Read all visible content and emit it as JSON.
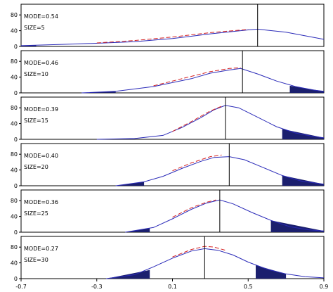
{
  "chart_data": [
    {
      "type": "line",
      "annotations": [
        "MODE=0.54",
        "SIZE=5"
      ],
      "mode_line_x": 0.55,
      "x_range": [
        -0.7,
        0.9
      ],
      "y_range": [
        0,
        100
      ],
      "yticks": [
        "0",
        "40",
        "80"
      ],
      "series": [
        {
          "color": "#2a2ab8",
          "dash": false,
          "x": [
            -0.7,
            -0.5,
            -0.3,
            -0.1,
            0.1,
            0.3,
            0.5,
            0.55,
            0.7,
            0.9
          ],
          "y": [
            2,
            5,
            8,
            12,
            20,
            32,
            42,
            44,
            36,
            18
          ]
        },
        {
          "color": "#d42020",
          "dash": true,
          "x": [
            -0.3,
            -0.1,
            0.1,
            0.3,
            0.5
          ],
          "y": [
            9,
            15,
            24,
            35,
            43
          ]
        }
      ],
      "tails": [
        {
          "x": [
            -0.7,
            -0.62
          ],
          "y": [
            2,
            3
          ]
        }
      ]
    },
    {
      "type": "line",
      "annotations": [
        "MODE=0.46",
        "SIZE=10"
      ],
      "mode_line_x": 0.47,
      "x_range": [
        -0.7,
        0.9
      ],
      "y_range": [
        0,
        100
      ],
      "yticks": [
        "0",
        "40",
        "80"
      ],
      "series": [
        {
          "color": "#2a2ab8",
          "dash": false,
          "x": [
            -0.38,
            -0.2,
            0.0,
            0.2,
            0.3,
            0.4,
            0.46,
            0.55,
            0.65,
            0.75,
            0.85,
            0.9
          ],
          "y": [
            0,
            4,
            16,
            36,
            50,
            58,
            62,
            48,
            30,
            16,
            7,
            4
          ]
        },
        {
          "color": "#d42020",
          "dash": true,
          "x": [
            0.0,
            0.1,
            0.2,
            0.3,
            0.4,
            0.46
          ],
          "y": [
            18,
            30,
            42,
            54,
            62,
            64
          ]
        }
      ],
      "tails": [
        {
          "x": [
            -0.38,
            -0.2
          ],
          "y": [
            0,
            4
          ]
        },
        {
          "x": [
            0.72,
            0.9
          ],
          "y": [
            18,
            4
          ]
        }
      ]
    },
    {
      "type": "line",
      "annotations": [
        "MODE=0.39",
        "SIZE=15"
      ],
      "mode_line_x": 0.38,
      "x_range": [
        -0.7,
        0.9
      ],
      "y_range": [
        0,
        100
      ],
      "yticks": [
        "0",
        "40",
        "80"
      ],
      "series": [
        {
          "color": "#2a2ab8",
          "dash": false,
          "x": [
            -0.3,
            -0.1,
            0.05,
            0.15,
            0.25,
            0.32,
            0.38,
            0.45,
            0.55,
            0.65,
            0.75,
            0.85,
            0.9
          ],
          "y": [
            0,
            2,
            10,
            30,
            55,
            75,
            86,
            80,
            56,
            32,
            16,
            7,
            4
          ]
        },
        {
          "color": "#d42020",
          "dash": true,
          "x": [
            0.1,
            0.2,
            0.3,
            0.36
          ],
          "y": [
            20,
            45,
            72,
            84
          ]
        }
      ],
      "tails": [
        {
          "x": [
            -0.3,
            -0.1
          ],
          "y": [
            0,
            2
          ]
        },
        {
          "x": [
            0.68,
            0.9
          ],
          "y": [
            26,
            4
          ]
        }
      ]
    },
    {
      "type": "line",
      "annotations": [
        "MODE=0.40",
        "SIZE=20"
      ],
      "mode_line_x": 0.4,
      "x_range": [
        -0.7,
        0.9
      ],
      "y_range": [
        0,
        100
      ],
      "yticks": [
        "0",
        "40",
        "80"
      ],
      "series": [
        {
          "color": "#2a2ab8",
          "dash": false,
          "x": [
            -0.2,
            -0.05,
            0.05,
            0.15,
            0.25,
            0.32,
            0.4,
            0.48,
            0.58,
            0.68,
            0.78,
            0.9
          ],
          "y": [
            0,
            10,
            24,
            44,
            62,
            72,
            74,
            66,
            46,
            26,
            12,
            4
          ]
        },
        {
          "color": "#d42020",
          "dash": true,
          "x": [
            0.1,
            0.2,
            0.3,
            0.36
          ],
          "y": [
            38,
            58,
            74,
            78
          ]
        }
      ],
      "tails": [
        {
          "x": [
            -0.2,
            -0.05
          ],
          "y": [
            0,
            10
          ]
        },
        {
          "x": [
            0.68,
            0.9
          ],
          "y": [
            26,
            4
          ]
        }
      ]
    },
    {
      "type": "line",
      "annotations": [
        "MODE=0.36",
        "SIZE=25"
      ],
      "mode_line_x": 0.35,
      "x_range": [
        -0.7,
        0.9
      ],
      "y_range": [
        0,
        100
      ],
      "yticks": [
        "0",
        "40",
        "80"
      ],
      "series": [
        {
          "color": "#2a2ab8",
          "dash": false,
          "x": [
            -0.15,
            0.0,
            0.1,
            0.2,
            0.28,
            0.35,
            0.42,
            0.52,
            0.62,
            0.72,
            0.82,
            0.9
          ],
          "y": [
            0,
            12,
            34,
            58,
            74,
            82,
            72,
            50,
            30,
            14,
            6,
            3
          ]
        },
        {
          "color": "#d42020",
          "dash": true,
          "x": [
            0.1,
            0.2,
            0.28,
            0.33
          ],
          "y": [
            38,
            62,
            76,
            82
          ]
        }
      ],
      "tails": [
        {
          "x": [
            -0.15,
            -0.02
          ],
          "y": [
            0,
            10
          ]
        },
        {
          "x": [
            0.62,
            0.9
          ],
          "y": [
            30,
            3
          ]
        }
      ]
    },
    {
      "type": "line",
      "annotations": [
        "MODE=0.27",
        "SIZE=30"
      ],
      "mode_line_x": 0.27,
      "x_range": [
        -0.7,
        0.9
      ],
      "y_range": [
        0,
        100
      ],
      "yticks": [
        "0",
        "40",
        "80"
      ],
      "xticks": [
        "-0.7",
        "-0.3",
        "0.1",
        "0.5",
        "0.9"
      ],
      "series": [
        {
          "color": "#2a2ab8",
          "dash": false,
          "x": [
            -0.25,
            -0.1,
            0.0,
            0.1,
            0.2,
            0.27,
            0.34,
            0.42,
            0.5,
            0.6,
            0.7,
            0.8,
            0.9
          ],
          "y": [
            0,
            10,
            30,
            52,
            70,
            76,
            72,
            60,
            42,
            24,
            12,
            5,
            2
          ]
        },
        {
          "color": "#d42020",
          "dash": true,
          "x": [
            0.1,
            0.2,
            0.27,
            0.32,
            0.38
          ],
          "y": [
            55,
            74,
            82,
            80,
            72
          ]
        }
      ],
      "tails": [
        {
          "x": [
            -0.25,
            -0.02
          ],
          "y": [
            0,
            22
          ]
        },
        {
          "x": [
            0.54,
            0.7
          ],
          "y": [
            34,
            12
          ]
        }
      ]
    }
  ]
}
